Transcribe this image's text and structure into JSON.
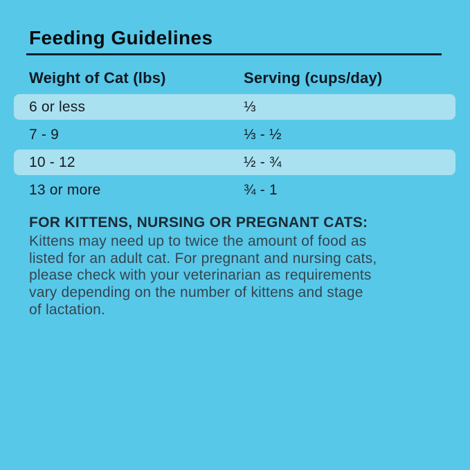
{
  "title": "Feeding Guidelines",
  "table": {
    "headers": {
      "weight": "Weight of Cat (lbs)",
      "serving": "Serving (cups/day)"
    },
    "rows": [
      {
        "weight": "6 or less",
        "serving": "⅓"
      },
      {
        "weight": "7 - 9",
        "serving": "⅓ - ½"
      },
      {
        "weight": "10 - 12",
        "serving": "½ - ¾"
      },
      {
        "weight": "13 or more",
        "serving": "¾ - 1"
      }
    ]
  },
  "note": {
    "heading": "FOR KITTENS, NURSING OR PREGNANT CATS:",
    "lines": [
      "Kittens may need up to twice the amount of food as",
      "listed for an adult cat. For pregnant and nursing cats,",
      "please check with your veterinarian as requirements",
      "vary depending on the number of kittens and stage",
      "of lactation."
    ]
  },
  "colors": {
    "background": "#58c8e9",
    "stripe": "#a9e1f0",
    "title_ink": "#0a0d11",
    "header_ink": "#101820",
    "row_ink": "#161b21",
    "rule": "#111f28",
    "note_heading_ink": "#1b2a33",
    "note_body_ink": "#33454f"
  }
}
